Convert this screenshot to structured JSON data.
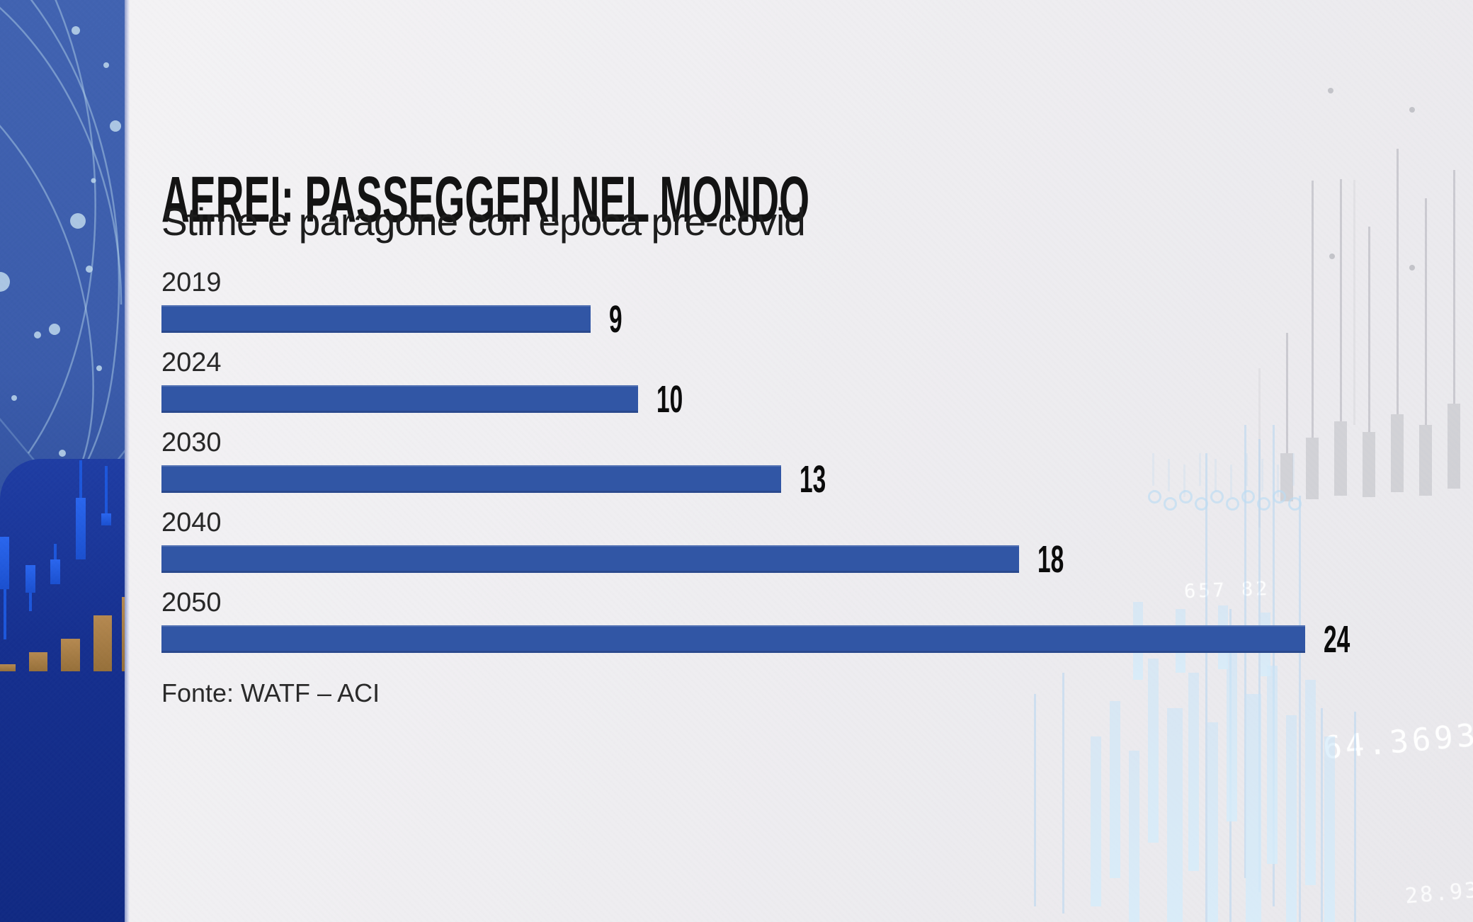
{
  "header": {
    "title": "AEREI: PASSEGGERI NEL MONDO",
    "subtitle": "Stime e paragone con epoca pre-covid"
  },
  "source_label": "Fonte: WATF – ACI",
  "chart_data": {
    "type": "bar",
    "orientation": "horizontal",
    "title": "AEREI: PASSEGGERI NEL MONDO",
    "subtitle": "Stime e paragone con epoca pre-covid",
    "source": "Fonte: WATF – ACI",
    "categories": [
      "2019",
      "2024",
      "2030",
      "2040",
      "2050"
    ],
    "values": [
      9,
      10,
      13,
      18,
      24
    ],
    "value_labels": [
      "9",
      "10",
      "13",
      "18",
      "24"
    ],
    "xlim": [
      0,
      26
    ],
    "grid": false,
    "legend": false,
    "bar_color": "#3156a5",
    "value_label_color": "#0b0b0b"
  },
  "background": {
    "ticker_number_1": "657 82",
    "ticker_number_2": "64.3693",
    "ticker_number_3": "28.93"
  },
  "colors": {
    "accent_bar_blue": "#3156a5",
    "sidebar_top_blue": "#3e60ae",
    "sidebar_panel_blue": "#16308f",
    "sidebar_candle_blue": "#1d57db",
    "sidebar_gold": "#a87c42",
    "canvas_gray": "#efeef1"
  }
}
